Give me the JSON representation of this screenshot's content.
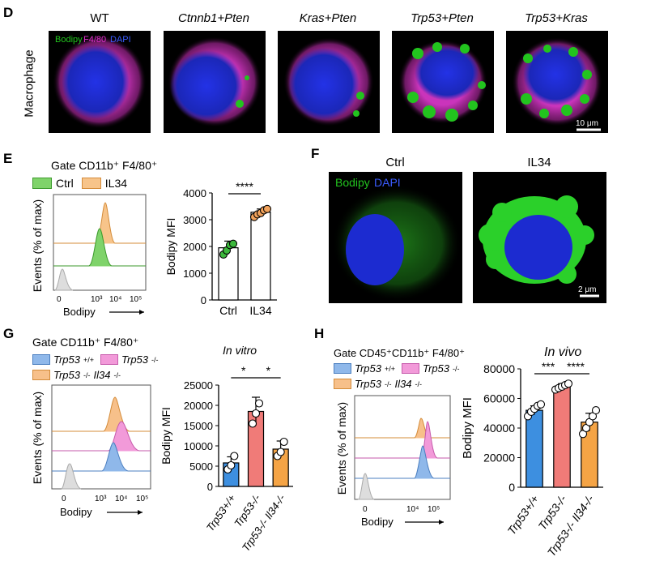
{
  "panelD": {
    "label": "D",
    "row_label": "Macrophage",
    "legend": {
      "bodipy": "Bodipy",
      "f480": "F4/80",
      "dapi": "DAPI"
    },
    "columns": [
      "WT",
      "Ctnnb1+Pten",
      "Kras+Pten",
      "Trp53+Pten",
      "Trp53+Kras"
    ],
    "scale_bar": "10 μm",
    "colors": {
      "bodipy": "#22c41e",
      "f480": "#e52fd1",
      "dapi": "#1e2ee0"
    }
  },
  "panelE": {
    "label": "E",
    "gate": "Gate CD11b⁺ F4/80⁺",
    "legend": [
      "Ctrl",
      "IL34"
    ],
    "legend_colors": [
      "#7fd36a",
      "#f7c48a"
    ],
    "flow_ylabel": "Events (% of max)",
    "flow_xlabel": "Bodipy",
    "flow_ticks": [
      "0",
      "10³",
      "10⁴",
      "10⁵"
    ],
    "chart_data": {
      "type": "bar",
      "categories": [
        "Ctrl",
        "IL34"
      ],
      "values": [
        1950,
        3280
      ],
      "points": [
        [
          1700,
          1850,
          2050,
          2100
        ],
        [
          3100,
          3200,
          3250,
          3350,
          3400
        ]
      ],
      "error": [
        250,
        120
      ],
      "bar_color": "#ffffff",
      "point_colors": [
        "#3cb83c",
        "#f2a35c"
      ],
      "ylabel": "Bodipy MFI",
      "ylim": [
        0,
        4000
      ],
      "yticks": [
        "0",
        "1000",
        "2000",
        "3000",
        "4000"
      ],
      "significance": "****"
    }
  },
  "panelF": {
    "label": "F",
    "columns": [
      "Ctrl",
      "IL34"
    ],
    "legend": {
      "bodipy": "Bodipy",
      "dapi": "DAPI"
    },
    "scale_bar": "2 μm"
  },
  "panelG": {
    "label": "G",
    "gate": "Gate CD11b⁺ F4/80⁺",
    "legend": [
      "Trp53+/+",
      "Trp53-/-",
      "Trp53-/- Il34-/-"
    ],
    "legend_base": [
      "Trp53",
      "Trp53",
      "Trp53",
      "Il34"
    ],
    "legend_sup": [
      "+/+",
      "-/-",
      "-/-",
      "-/-"
    ],
    "legend_colors": [
      "#8fb8ea",
      "#f29ad9",
      "#f7c08a"
    ],
    "flow_ylabel": "Events (% of max)",
    "flow_xlabel": "Bodipy",
    "flow_ticks": [
      "0",
      "10³",
      "10⁴",
      "10⁵"
    ],
    "subtitle": "In vitro",
    "chart_data": {
      "type": "bar",
      "categories": [
        "Trp53+/+",
        "Trp53-/-",
        "Trp53-/- Il34-/-"
      ],
      "values": [
        5800,
        18500,
        9200
      ],
      "error": [
        1500,
        3500,
        2000
      ],
      "points": [
        [
          4200,
          5200,
          7500
        ],
        [
          15500,
          18000,
          20500
        ],
        [
          7500,
          8500,
          11000
        ]
      ],
      "bar_colors": [
        "#3d8fe0",
        "#f07b78",
        "#f5a445"
      ],
      "ylabel": "Bodipy MFI",
      "ylim": [
        0,
        25000
      ],
      "yticks": [
        "0",
        "5000",
        "10000",
        "15000",
        "20000",
        "25000"
      ],
      "significance": [
        "*",
        "*"
      ]
    }
  },
  "panelH": {
    "label": "H",
    "gate": "Gate CD45⁺CD11b⁺ F4/80⁺",
    "legend": [
      "Trp53+/+",
      "Trp53-/-",
      "Trp53-/- Il34-/-"
    ],
    "legend_colors": [
      "#8fb8ea",
      "#f29ad9",
      "#f7c08a"
    ],
    "flow_ylabel": "Events (% of max)",
    "flow_xlabel": "Bodipy",
    "flow_ticks": [
      "0",
      "10⁴",
      "10⁵"
    ],
    "subtitle": "In vivo",
    "chart_data": {
      "type": "bar",
      "categories": [
        "Trp53+/+",
        "Trp53-/-",
        "Trp53-/- Il34-/-"
      ],
      "values": [
        52000,
        68000,
        44000
      ],
      "error": [
        3000,
        2000,
        6000
      ],
      "points": [
        [
          48000,
          51000,
          53000,
          55000,
          56000
        ],
        [
          66000,
          67000,
          68000,
          69000,
          70000
        ],
        [
          36000,
          40000,
          44000,
          48000,
          52000
        ]
      ],
      "bar_colors": [
        "#3d8fe0",
        "#f07b78",
        "#f5a445"
      ],
      "ylabel": "Bodipy MFI",
      "ylim": [
        0,
        80000
      ],
      "yticks": [
        "0",
        "20000",
        "40000",
        "60000",
        "80000"
      ],
      "significance": [
        "***",
        "****"
      ]
    }
  }
}
